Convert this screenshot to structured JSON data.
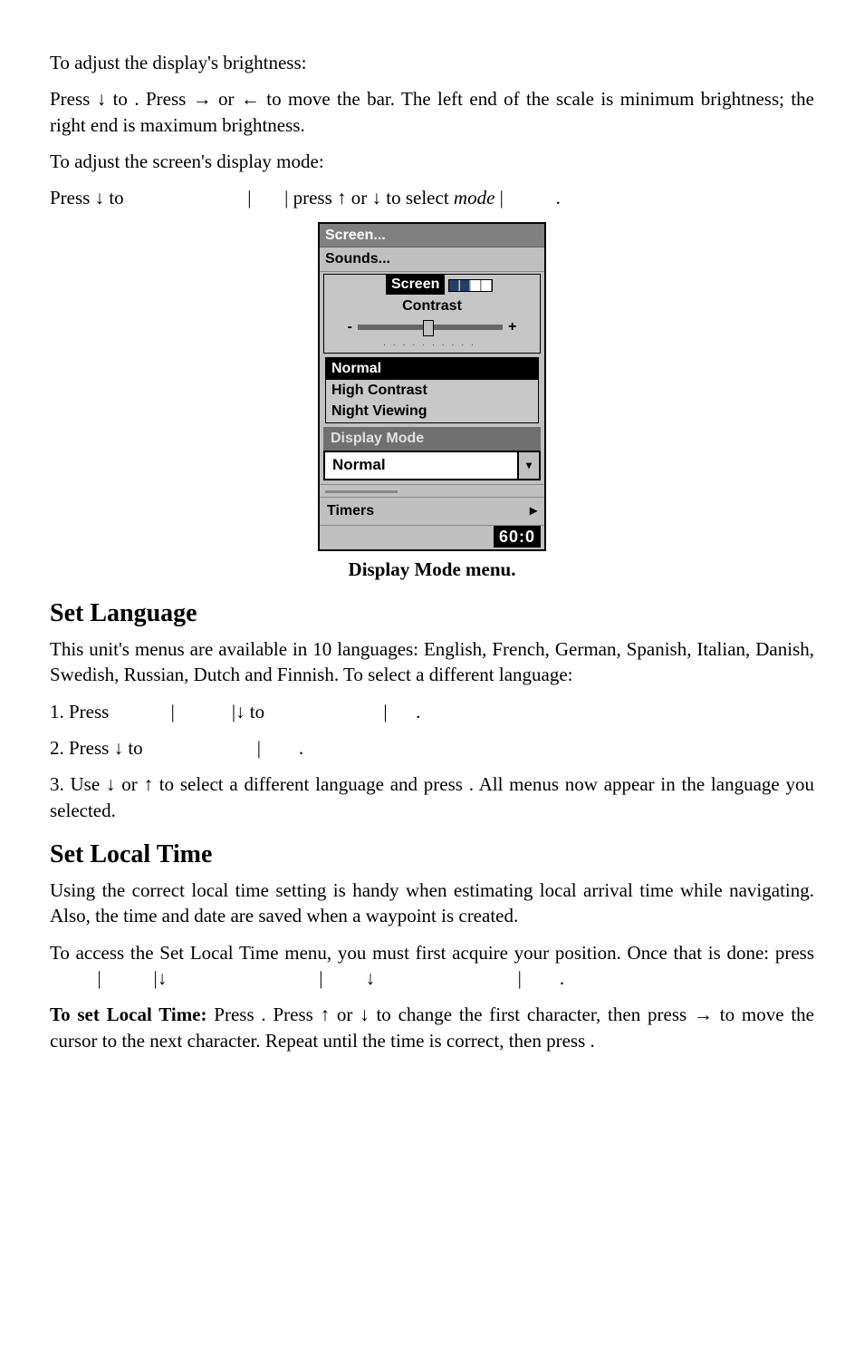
{
  "brightness_intro": "To adjust the display's brightness:",
  "brightness_steps": "Press ↓ to                     . Press → or ← to move the bar. The left end of the scale is minimum brightness; the right end is maximum brightness.",
  "displaymode_intro": "To adjust the screen's display mode:",
  "displaymode_line_pre": "Press ↓ to",
  "displaymode_line_mid": "| press ↑ or ↓ to select ",
  "displaymode_var": "mode",
  "pipe": "|",
  "dot": ".",
  "figure": {
    "screen": "Screen...",
    "sounds": "Sounds...",
    "inset_title": "Screen",
    "contrast": "Contrast",
    "minus": "-",
    "plus": "+",
    "modes": {
      "normal": "Normal",
      "high": "High Contrast",
      "night": "Night Viewing"
    },
    "disp_hdr": "Display Mode",
    "select_value": "Normal",
    "select_caret": "▾",
    "timers": "Timers",
    "timers_caret": "▸",
    "readout": "60:0",
    "ticks": ".........."
  },
  "caption": "Display Mode menu.",
  "lang": {
    "heading": "Set Language",
    "intro": "This unit's menus are available in 10 languages: English, French, German, Spanish, Italian, Danish, Swedish, Russian, Dutch and Finnish. To select a different language:",
    "step1_pre": "1. Press",
    "step1_mid": "|↓ to",
    "step2_pre": "2. Press ↓ to",
    "step3_pre": "3. Use ↓ or ↑ to select a different language and press          . All menus now appear in the language you selected."
  },
  "time": {
    "heading": "Set Local Time",
    "intro": "Using the correct local time setting is handy when estimating local arrival time while navigating. Also, the time and date are saved when a waypoint is created.",
    "access_pre": "To access the Set Local Time menu, you must first acquire your position. Once that is done: press",
    "set_bold": "To set Local Time:",
    "set_mid": " Press          . Press ↑ or ↓ to change the first character, then press → to move the cursor to the next character. Repeat until the time is correct, then press          ."
  }
}
